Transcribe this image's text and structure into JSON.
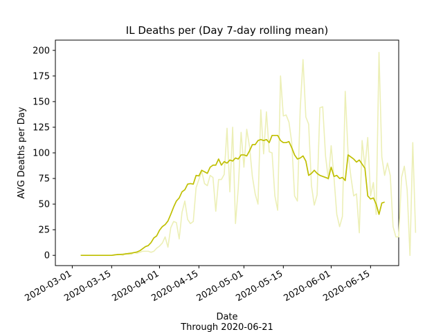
{
  "chart_data": {
    "type": "line",
    "title": "IL Deaths per (Day 7-day rolling mean)",
    "xlabel": "Date",
    "xlabel_sub": "Through 2020-06-21",
    "ylabel": "AVG Deaths per Day",
    "x_start": "2020-03-04",
    "xlim": [
      "2020-02-24",
      "2020-06-25"
    ],
    "ylim": [
      -10,
      210
    ],
    "yticks": [
      0,
      25,
      50,
      75,
      100,
      125,
      150,
      175,
      200
    ],
    "xticks": [
      "2020-03-01",
      "2020-03-15",
      "2020-04-01",
      "2020-04-15",
      "2020-05-01",
      "2020-05-15",
      "2020-06-01",
      "2020-06-15"
    ],
    "grid": false,
    "series": [
      {
        "role": "daily",
        "color": "#ecefb6",
        "values": [
          0,
          0,
          0,
          0,
          0,
          0,
          0,
          0,
          0,
          0,
          0,
          0,
          0,
          1,
          1,
          0,
          2,
          1,
          1,
          3,
          2,
          3,
          4,
          4,
          4,
          3,
          4,
          7,
          9,
          12,
          18,
          8,
          27,
          33,
          32,
          16,
          42,
          53,
          35,
          31,
          33,
          66,
          74,
          82,
          70,
          68,
          78,
          76,
          43,
          74,
          74,
          79,
          124,
          62,
          125,
          31,
          66,
          120,
          86,
          123,
          106,
          77,
          60,
          50,
          142,
          99,
          140,
          101,
          100,
          58,
          44,
          175,
          136,
          137,
          130,
          110,
          58,
          53,
          143,
          191,
          135,
          128,
          68,
          49,
          59,
          144,
          145,
          97,
          74,
          107,
          76,
          40,
          28,
          38,
          160,
          100,
          77,
          58,
          60,
          22,
          112,
          86,
          115,
          58,
          71,
          40,
          198,
          96,
          78,
          90,
          78,
          28,
          18,
          18,
          76,
          87,
          64,
          0,
          110,
          22
        ]
      },
      {
        "role": "7-day rolling mean",
        "color": "#bfbf00",
        "values": [
          0,
          0,
          0,
          0,
          0,
          0,
          0,
          0,
          0,
          0,
          0,
          0,
          0.5,
          0.7,
          0.9,
          1.1,
          1.4,
          1.8,
          2.2,
          2.7,
          3.3,
          4.5,
          6.5,
          8.5,
          9.5,
          12.5,
          17.0,
          19.0,
          24.5,
          28.0,
          30.0,
          33.5,
          40.0,
          47.0,
          53.0,
          56.0,
          62.0,
          64.0,
          69.5,
          70.0,
          69.5,
          78.0,
          77.5,
          83.0,
          81.5,
          80.0,
          86.0,
          88.0,
          88.0,
          94.0,
          88.0,
          91.5,
          90.0,
          93.0,
          92.0,
          95.0,
          94.0,
          98.0,
          98.0,
          97.0,
          102.0,
          108.0,
          108.0,
          112.0,
          113.0,
          112.0,
          113.0,
          110.0,
          117.0,
          117.0,
          117.0,
          112.0,
          110.0,
          110.0,
          111.0,
          105.0,
          98.0,
          94.0,
          95.0,
          97.0,
          92.0,
          78.0,
          80.0,
          83.0,
          80.0,
          78.0,
          77.0,
          76.0,
          75.0,
          86.0,
          77.0,
          78.0,
          75.0,
          76.0,
          73.0,
          98.0,
          96.0,
          94.0,
          91.0,
          93.0,
          89.0,
          85.0,
          58.0,
          55.0,
          56.0,
          50.0,
          40.0,
          51.0,
          52.0
        ]
      }
    ]
  }
}
